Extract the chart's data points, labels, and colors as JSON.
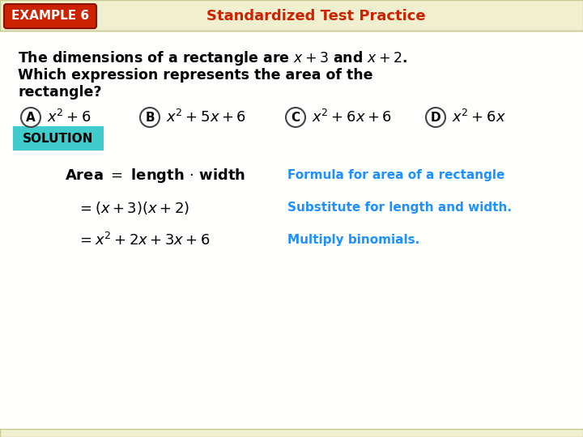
{
  "bg_color": "#fffef0",
  "header_bg": "#f0f0d0",
  "example_label": "EXAMPLE 6",
  "example_label_bg": "#cc2200",
  "example_label_color": "#ffffff",
  "title": "Standardized Test Practice",
  "title_color": "#cc2200",
  "solution_label": "SOLUTION",
  "solution_bg": "#40cccc",
  "solution_color": "#000000",
  "step1_right": "Formula for area of a rectangle",
  "step2_right": "Substitute for length and width.",
  "step3_right": "Multiply binomials.",
  "annotation_color": "#1e90ff",
  "text_color": "#000000",
  "stripe_color": "#e8e8c8"
}
